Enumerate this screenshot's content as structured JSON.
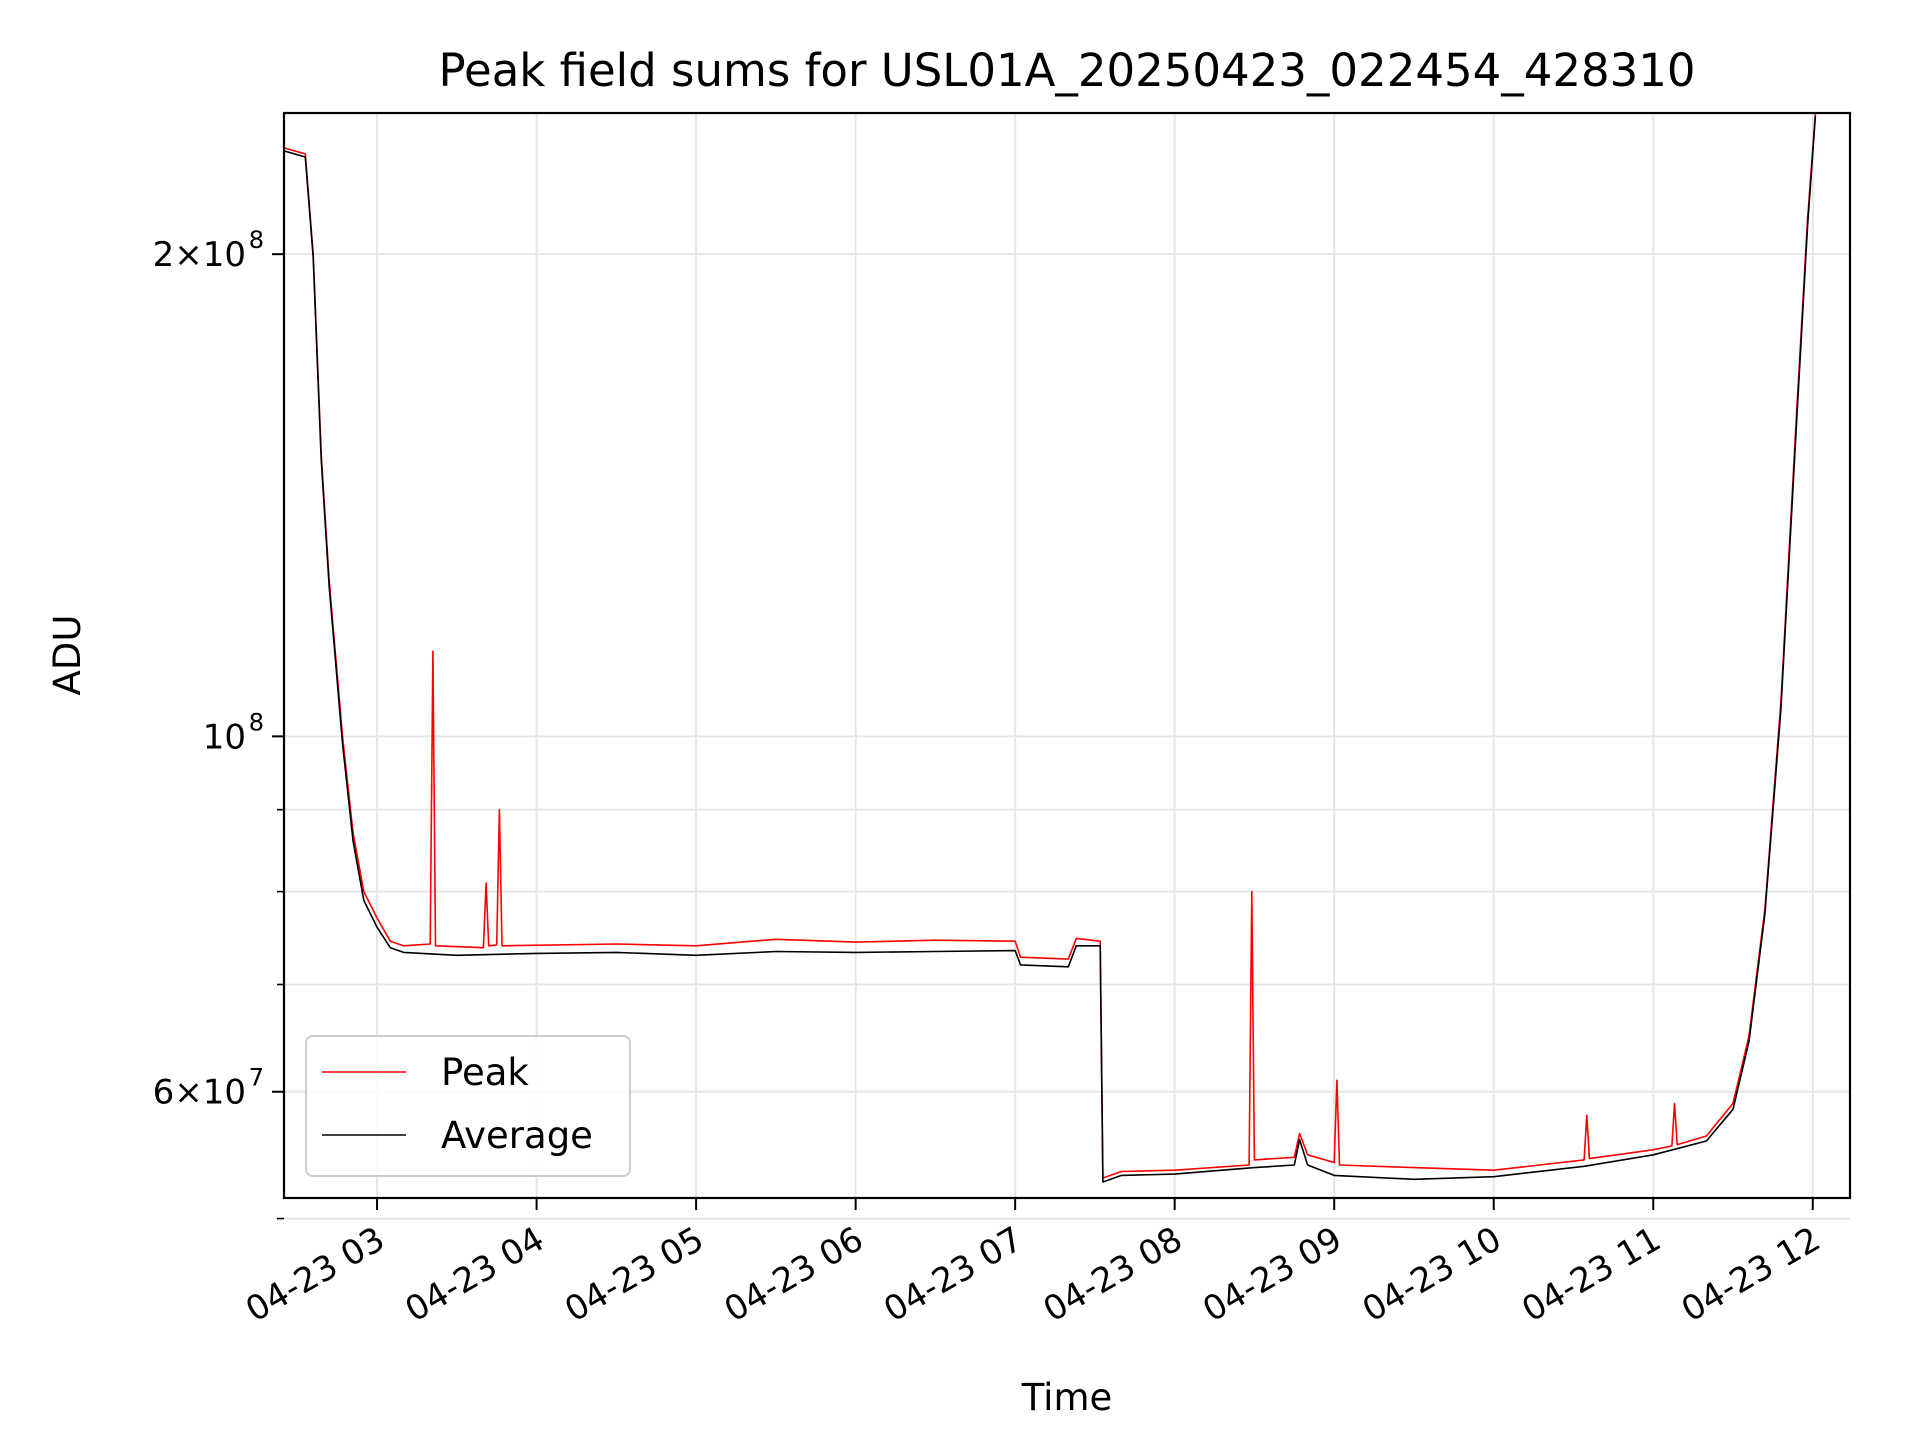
{
  "chart_data": {
    "type": "line",
    "title": "Peak field sums for USL01A_20250423_022454_428310",
    "xlabel": "Time",
    "ylabel": "ADU",
    "yscale": "log",
    "grid": true,
    "legend_position": "lower-left",
    "xlim": [
      "2025-04-23 02:25",
      "2025-04-23 12:14"
    ],
    "ylim": [
      51500000,
      245000000
    ],
    "x_ticks": [
      {
        "t": "2025-04-23 03:00",
        "label": "04-23 03"
      },
      {
        "t": "2025-04-23 04:00",
        "label": "04-23 04"
      },
      {
        "t": "2025-04-23 05:00",
        "label": "04-23 05"
      },
      {
        "t": "2025-04-23 06:00",
        "label": "04-23 06"
      },
      {
        "t": "2025-04-23 07:00",
        "label": "04-23 07"
      },
      {
        "t": "2025-04-23 08:00",
        "label": "04-23 08"
      },
      {
        "t": "2025-04-23 09:00",
        "label": "04-23 09"
      },
      {
        "t": "2025-04-23 10:00",
        "label": "04-23 10"
      },
      {
        "t": "2025-04-23 11:00",
        "label": "04-23 11"
      },
      {
        "t": "2025-04-23 12:00",
        "label": "04-23 12"
      }
    ],
    "y_major_ticks": [
      {
        "value": 60000000,
        "mantissa": "6",
        "exponent": "7"
      },
      {
        "value": 100000000,
        "mantissa": "",
        "exponent": "8"
      },
      {
        "value": 200000000,
        "mantissa": "2",
        "exponent": "8"
      }
    ],
    "y_minor_ticks": [
      50000000,
      70000000,
      80000000,
      90000000
    ],
    "series": [
      {
        "name": "Peak",
        "color": "#ff0000",
        "points": [
          [
            "2025-04-23 02:25",
            233000000
          ],
          [
            "2025-04-23 02:33",
            231000000
          ],
          [
            "2025-04-23 02:36",
            200000000
          ],
          [
            "2025-04-23 02:39",
            150000000
          ],
          [
            "2025-04-23 02:42",
            125000000
          ],
          [
            "2025-04-23 02:47",
            100000000
          ],
          [
            "2025-04-23 02:51",
            87000000
          ],
          [
            "2025-04-23 02:55",
            80000000
          ],
          [
            "2025-04-23 03:00",
            77000000
          ],
          [
            "2025-04-23 03:05",
            74500000
          ],
          [
            "2025-04-23 03:10",
            74000000
          ],
          [
            "2025-04-23 03:20",
            74200000
          ],
          [
            "2025-04-23 03:21",
            113000000
          ],
          [
            "2025-04-23 03:22",
            74000000
          ],
          [
            "2025-04-23 03:40",
            73800000
          ],
          [
            "2025-04-23 03:41",
            81000000
          ],
          [
            "2025-04-23 03:42",
            74000000
          ],
          [
            "2025-04-23 03:45",
            74100000
          ],
          [
            "2025-04-23 03:46",
            90000000
          ],
          [
            "2025-04-23 03:47",
            74000000
          ],
          [
            "2025-04-23 04:30",
            74200000
          ],
          [
            "2025-04-23 05:00",
            74000000
          ],
          [
            "2025-04-23 05:30",
            74700000
          ],
          [
            "2025-04-23 06:00",
            74400000
          ],
          [
            "2025-04-23 06:30",
            74600000
          ],
          [
            "2025-04-23 07:00",
            74500000
          ],
          [
            "2025-04-23 07:02",
            72800000
          ],
          [
            "2025-04-23 07:20",
            72600000
          ],
          [
            "2025-04-23 07:23",
            74800000
          ],
          [
            "2025-04-23 07:32",
            74500000
          ],
          [
            "2025-04-23 07:33",
            53000000
          ],
          [
            "2025-04-23 07:40",
            53500000
          ],
          [
            "2025-04-23 08:00",
            53600000
          ],
          [
            "2025-04-23 08:28",
            54000000
          ],
          [
            "2025-04-23 08:29",
            80000000
          ],
          [
            "2025-04-23 08:30",
            54400000
          ],
          [
            "2025-04-23 08:45",
            54600000
          ],
          [
            "2025-04-23 08:47",
            56500000
          ],
          [
            "2025-04-23 08:50",
            54800000
          ],
          [
            "2025-04-23 09:00",
            54200000
          ],
          [
            "2025-04-23 09:01",
            61000000
          ],
          [
            "2025-04-23 09:02",
            54000000
          ],
          [
            "2025-04-23 09:30",
            53800000
          ],
          [
            "2025-04-23 10:00",
            53600000
          ],
          [
            "2025-04-23 10:34",
            54400000
          ],
          [
            "2025-04-23 10:35",
            58000000
          ],
          [
            "2025-04-23 10:36",
            54500000
          ],
          [
            "2025-04-23 11:00",
            55200000
          ],
          [
            "2025-04-23 11:07",
            55500000
          ],
          [
            "2025-04-23 11:08",
            59000000
          ],
          [
            "2025-04-23 11:09",
            55600000
          ],
          [
            "2025-04-23 11:20",
            56300000
          ],
          [
            "2025-04-23 11:30",
            59000000
          ],
          [
            "2025-04-23 11:36",
            65000000
          ],
          [
            "2025-04-23 11:42",
            78000000
          ],
          [
            "2025-04-23 11:48",
            105000000
          ],
          [
            "2025-04-23 11:54",
            160000000
          ],
          [
            "2025-04-23 11:58",
            210000000
          ],
          [
            "2025-04-23 12:01",
            245000000
          ]
        ]
      },
      {
        "name": "Average",
        "color": "#000000",
        "points": [
          [
            "2025-04-23 02:25",
            232000000
          ],
          [
            "2025-04-23 02:33",
            230000000
          ],
          [
            "2025-04-23 02:36",
            199000000
          ],
          [
            "2025-04-23 02:39",
            149000000
          ],
          [
            "2025-04-23 02:42",
            124000000
          ],
          [
            "2025-04-23 02:47",
            99000000
          ],
          [
            "2025-04-23 02:51",
            86000000
          ],
          [
            "2025-04-23 02:55",
            79000000
          ],
          [
            "2025-04-23 03:00",
            76000000
          ],
          [
            "2025-04-23 03:05",
            73800000
          ],
          [
            "2025-04-23 03:10",
            73300000
          ],
          [
            "2025-04-23 03:30",
            73000000
          ],
          [
            "2025-04-23 04:00",
            73200000
          ],
          [
            "2025-04-23 04:30",
            73300000
          ],
          [
            "2025-04-23 05:00",
            73000000
          ],
          [
            "2025-04-23 05:30",
            73400000
          ],
          [
            "2025-04-23 06:00",
            73300000
          ],
          [
            "2025-04-23 06:30",
            73400000
          ],
          [
            "2025-04-23 07:00",
            73500000
          ],
          [
            "2025-04-23 07:02",
            72000000
          ],
          [
            "2025-04-23 07:20",
            71800000
          ],
          [
            "2025-04-23 07:23",
            74000000
          ],
          [
            "2025-04-23 07:32",
            74000000
          ],
          [
            "2025-04-23 07:33",
            52700000
          ],
          [
            "2025-04-23 07:40",
            53200000
          ],
          [
            "2025-04-23 08:00",
            53300000
          ],
          [
            "2025-04-23 08:30",
            53800000
          ],
          [
            "2025-04-23 08:45",
            54000000
          ],
          [
            "2025-04-23 08:47",
            56000000
          ],
          [
            "2025-04-23 08:50",
            54000000
          ],
          [
            "2025-04-23 09:00",
            53200000
          ],
          [
            "2025-04-23 09:30",
            52900000
          ],
          [
            "2025-04-23 10:00",
            53100000
          ],
          [
            "2025-04-23 10:34",
            53900000
          ],
          [
            "2025-04-23 11:00",
            54800000
          ],
          [
            "2025-04-23 11:20",
            55900000
          ],
          [
            "2025-04-23 11:30",
            58500000
          ],
          [
            "2025-04-23 11:36",
            64500000
          ],
          [
            "2025-04-23 11:42",
            77500000
          ],
          [
            "2025-04-23 11:48",
            104000000
          ],
          [
            "2025-04-23 11:54",
            158000000
          ],
          [
            "2025-04-23 11:58",
            208000000
          ],
          [
            "2025-04-23 12:01",
            244000000
          ]
        ]
      }
    ]
  }
}
